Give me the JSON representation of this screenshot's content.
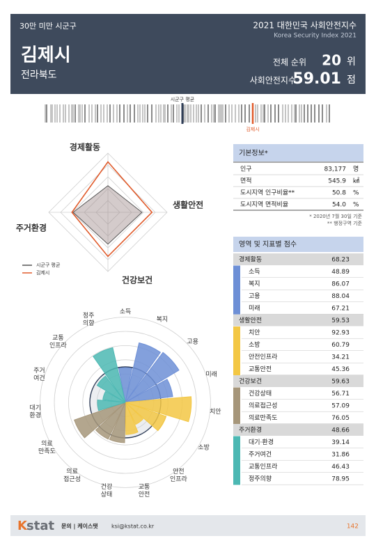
{
  "header": {
    "category": "30만 미만 시군구",
    "title": "2021 대한민국 사회안전지수",
    "subtitle": "Korea Security Index 2021",
    "city": "김제시",
    "province": "전라북도",
    "rank_label": "전체 순위",
    "rank": 20,
    "rank_unit": "위",
    "score_label": "사회안전지수",
    "score": 59.01,
    "score_unit": "점"
  },
  "ranking_strip": {
    "average_label": "시군구 평균",
    "city_label": "김제시"
  },
  "radar": {
    "axes": [
      "경제활동",
      "생활안전",
      "건강보건",
      "주거환경"
    ],
    "rlim": [
      0,
      80
    ],
    "series": [
      {
        "name": "시군구 평균",
        "color": "#555555",
        "values": [
          36,
          46,
          43,
          47
        ]
      },
      {
        "name": "김제시",
        "color": "#e05a2a",
        "values": [
          68.23,
          59.53,
          59.63,
          48.66
        ]
      }
    ]
  },
  "rose": {
    "labels": [
      [
        "소득"
      ],
      [
        "복지"
      ],
      [
        "고용"
      ],
      [
        "미래"
      ],
      [
        "치안"
      ],
      [
        "소방"
      ],
      [
        "안전",
        "인프라"
      ],
      [
        "교통",
        "안전"
      ],
      [
        "건강",
        "상태"
      ],
      [
        "의료",
        "접근성"
      ],
      [
        "의료",
        "만족도"
      ],
      [
        "대기",
        "환경"
      ],
      [
        "주거",
        "여건"
      ],
      [
        "교통",
        "인프라"
      ],
      [
        "정주",
        "의향"
      ]
    ]
  },
  "basic_info": {
    "title": "기본정보*",
    "rows": [
      [
        "인구",
        "83,177",
        "명"
      ],
      [
        "면적",
        "545.9",
        "㎢"
      ],
      [
        "도시지역 인구비율**",
        "50.8",
        "%"
      ],
      [
        "도시지역 면적비율",
        "54.0",
        "%"
      ]
    ],
    "notes": [
      "* 2020년 7월 30일 기준",
      "** 행정구역 기준"
    ]
  },
  "scores": {
    "title": "영역 및 지표별 점수",
    "domains": [
      {
        "name": "경제활동",
        "score": 68.23,
        "color": "#6d8fd6",
        "indicators": [
          {
            "name": "소득",
            "score": 48.89
          },
          {
            "name": "복지",
            "score": 86.07
          },
          {
            "name": "고용",
            "score": 88.04
          },
          {
            "name": "미래",
            "score": 67.21
          }
        ]
      },
      {
        "name": "생활안전",
        "score": 59.53,
        "color": "#f3c744",
        "indicators": [
          {
            "name": "치안",
            "score": 92.93
          },
          {
            "name": "소방",
            "score": 60.79
          },
          {
            "name": "안전인프라",
            "score": 34.21
          },
          {
            "name": "교통안전",
            "score": 45.36
          }
        ]
      },
      {
        "name": "건강보건",
        "score": 59.63,
        "color": "#a6967a",
        "indicators": [
          {
            "name": "건강상태",
            "score": 56.71
          },
          {
            "name": "의료접근성",
            "score": 57.09
          },
          {
            "name": "의료만족도",
            "score": 76.05
          }
        ]
      },
      {
        "name": "주거환경",
        "score": 48.66,
        "color": "#4cb8b3",
        "indicators": [
          {
            "name": "대기·환경",
            "score": 39.14
          },
          {
            "name": "주거여건",
            "score": 31.86
          },
          {
            "name": "교통인프라",
            "score": 46.43
          },
          {
            "name": "정주의향",
            "score": 78.95
          }
        ]
      }
    ]
  },
  "footer": {
    "logo_k": "K",
    "logo_rest": "stat",
    "contact": "문의 | 케이스탯",
    "email": "ksi@kstat.co.kr",
    "page": "142"
  }
}
